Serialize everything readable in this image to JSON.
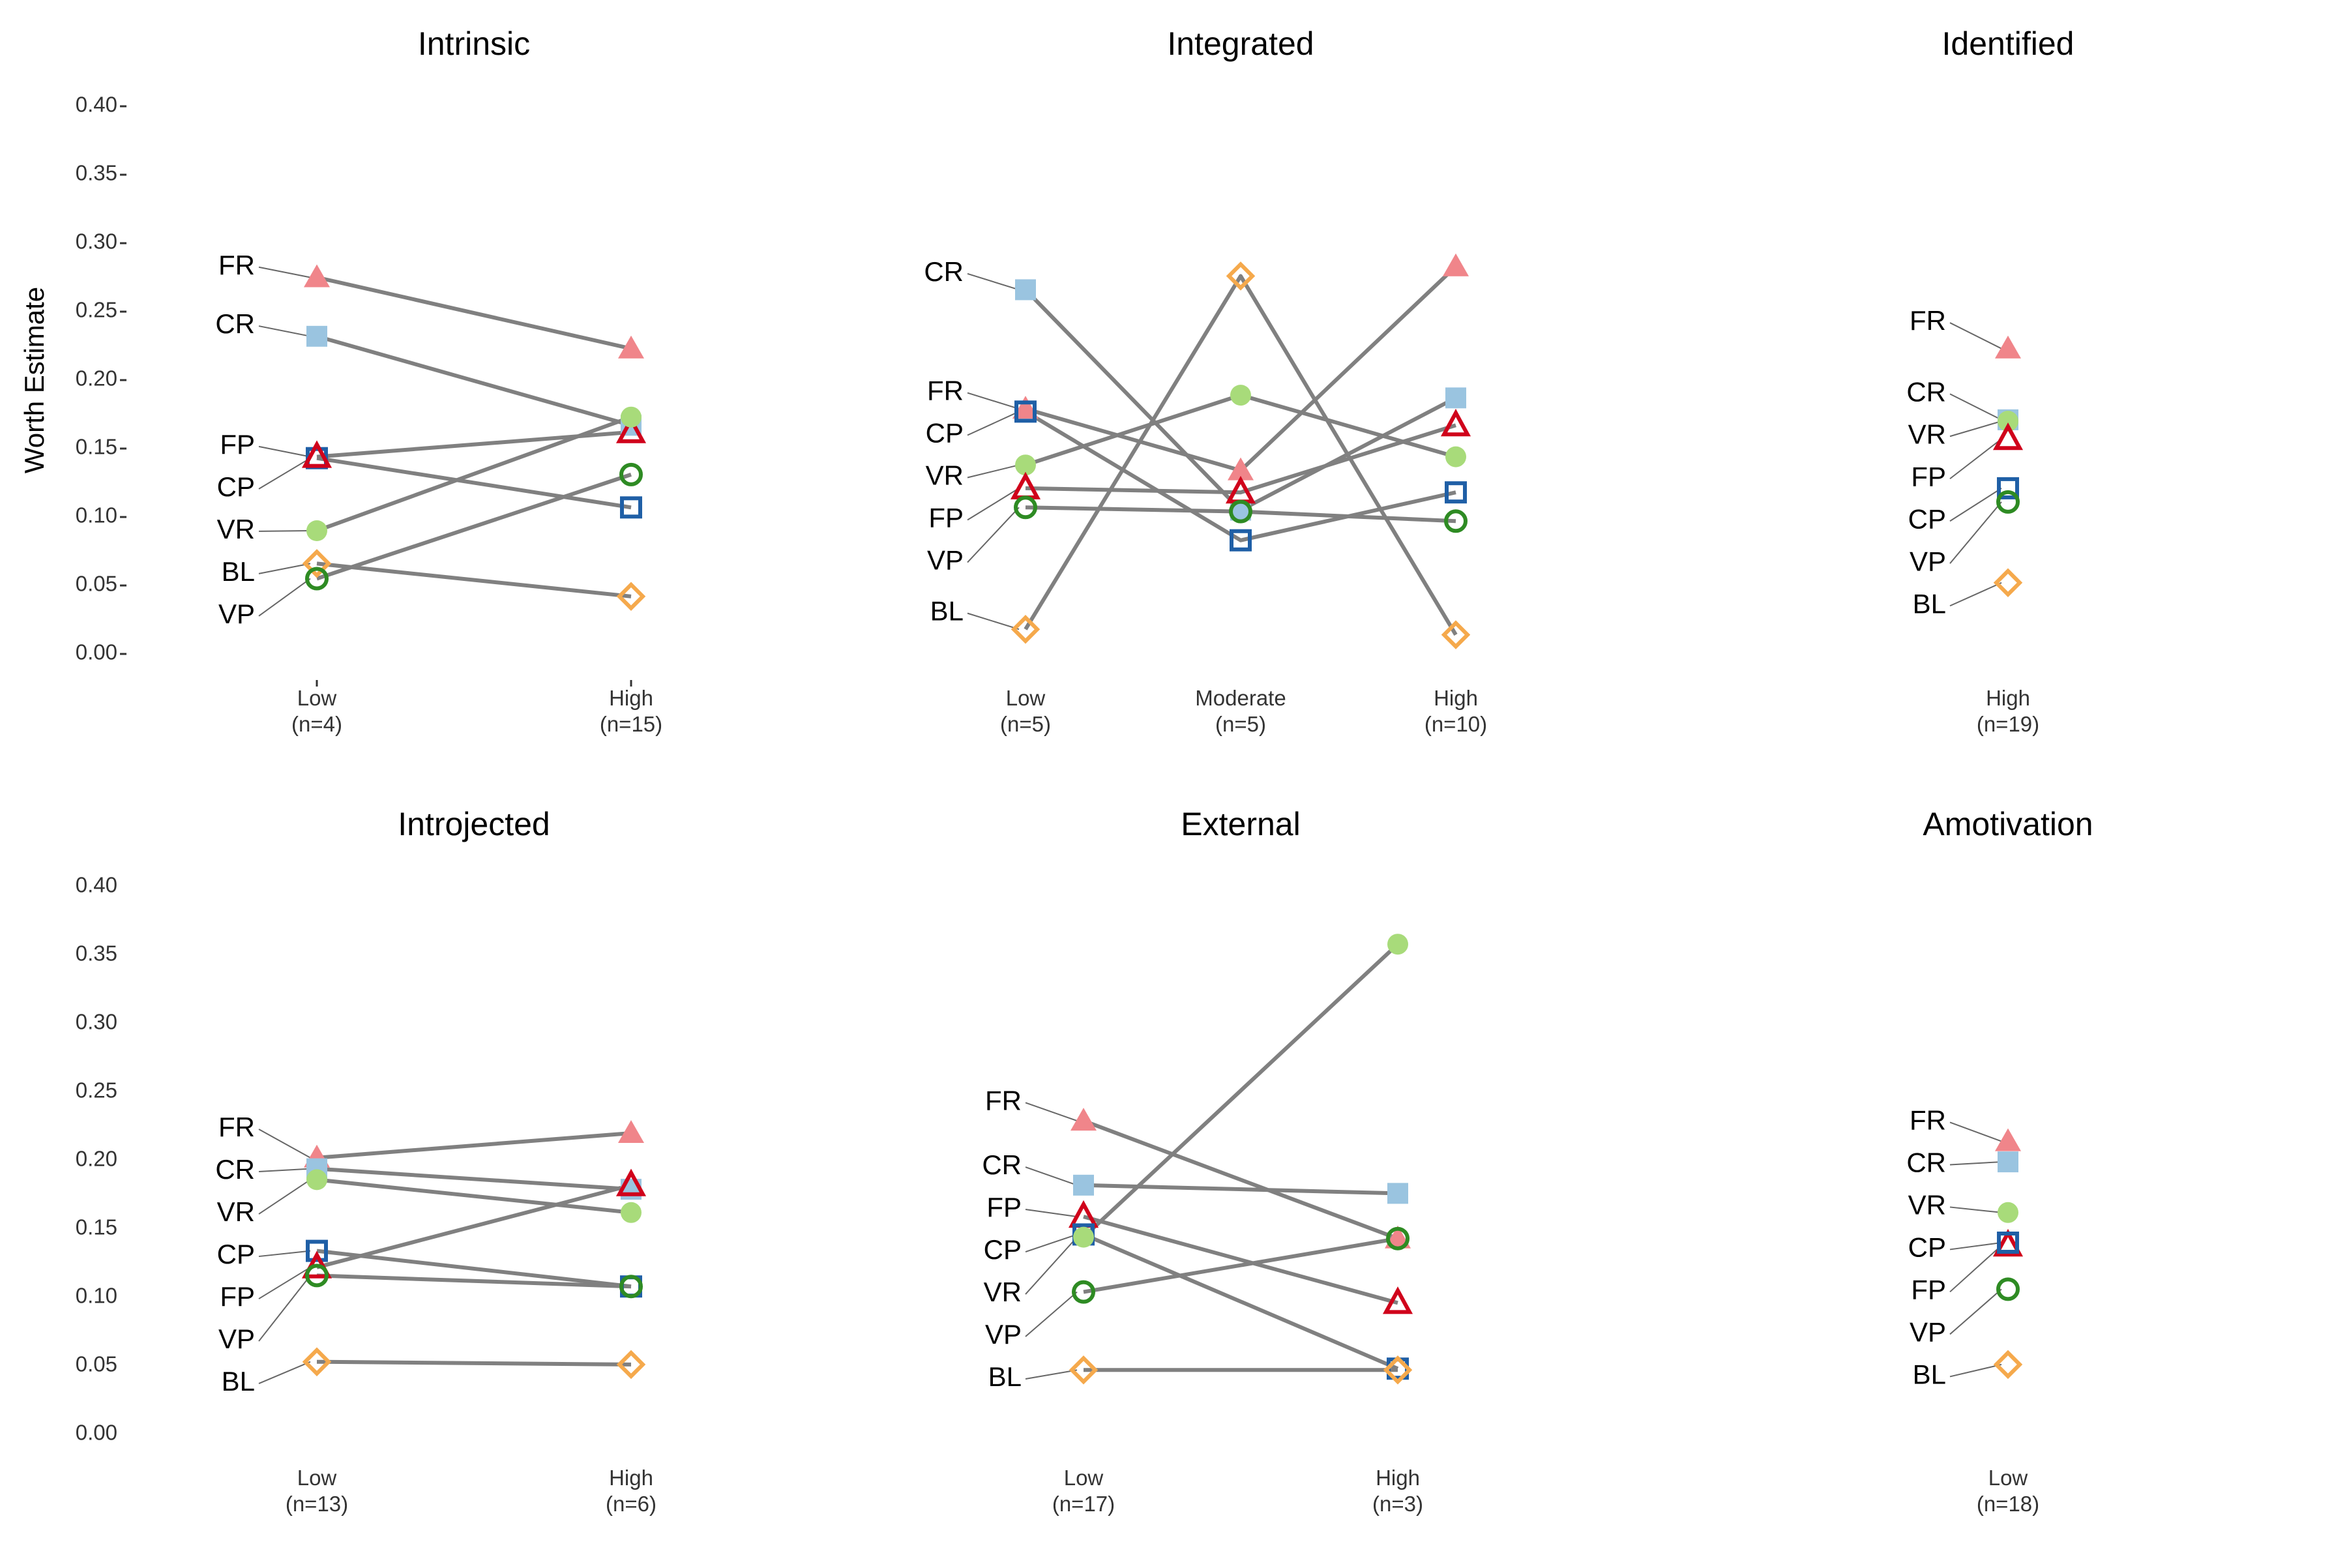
{
  "chart_data": {
    "type": "line",
    "ylabel": "Worth Estimate",
    "ylim": [
      0,
      0.4
    ],
    "yticks": [
      "0.00",
      "0.05",
      "0.10",
      "0.15",
      "0.20",
      "0.25",
      "0.30",
      "0.35",
      "0.40"
    ],
    "grid": false,
    "series_styles": {
      "FR": {
        "color": "#F0858A",
        "marker": "triangle-filled"
      },
      "CR": {
        "color": "#9AC4E0",
        "marker": "square-filled"
      },
      "VR": {
        "color": "#A8DB7A",
        "marker": "circle-filled"
      },
      "CP": {
        "color": "#1F5FA6",
        "marker": "square-open"
      },
      "FP": {
        "color": "#D0021B",
        "marker": "triangle-open"
      },
      "VP": {
        "color": "#2E8B23",
        "marker": "circle-open"
      },
      "BL": {
        "color": "#F5A94C",
        "marker": "diamond-open"
      }
    },
    "line_color": "#808080",
    "panels": [
      {
        "title": "Intrinsic",
        "categories": [
          "Low",
          "High"
        ],
        "counts": [
          "(n=4)",
          "(n=15)"
        ],
        "label_order": [
          "FR",
          "CR",
          "CP",
          "FP",
          "VR",
          "BL",
          "VP"
        ],
        "series": [
          {
            "name": "FR",
            "values": [
              0.275,
              0.223
            ]
          },
          {
            "name": "CR",
            "values": [
              0.232,
              0.167
            ]
          },
          {
            "name": "CP",
            "values": [
              0.143,
              0.107
            ]
          },
          {
            "name": "FP",
            "values": [
              0.144,
              0.162
            ]
          },
          {
            "name": "VR",
            "values": [
              0.09,
              0.173
            ]
          },
          {
            "name": "BL",
            "values": [
              0.066,
              0.042
            ]
          },
          {
            "name": "VP",
            "values": [
              0.055,
              0.131
            ]
          }
        ]
      },
      {
        "title": "Integrated",
        "categories": [
          "Low",
          "Moderate",
          "High"
        ],
        "counts": [
          "(n=5)",
          "(n=5)",
          "(n=10)"
        ],
        "label_order": [
          "CR",
          "FR",
          "CP",
          "VR",
          "FP",
          "VP",
          "BL"
        ],
        "series": [
          {
            "name": "CR",
            "values": [
              0.266,
              0.105,
              0.187
            ]
          },
          {
            "name": "FR",
            "values": [
              0.179,
              0.134,
              0.283
            ]
          },
          {
            "name": "CP",
            "values": [
              0.177,
              0.083,
              0.118
            ]
          },
          {
            "name": "VR",
            "values": [
              0.138,
              0.189,
              0.144
            ]
          },
          {
            "name": "FP",
            "values": [
              0.121,
              0.118,
              0.167
            ]
          },
          {
            "name": "VP",
            "values": [
              0.107,
              0.104,
              0.097
            ]
          },
          {
            "name": "BL",
            "values": [
              0.018,
              0.276,
              0.014
            ]
          }
        ]
      },
      {
        "title": "Identified",
        "categories": [
          "High"
        ],
        "counts": [
          "(n=19)"
        ],
        "label_order": [
          "FR",
          "CR",
          "VR",
          "FP",
          "CP",
          "VP",
          "BL"
        ],
        "series": [
          {
            "name": "FR",
            "values": [
              0.223
            ]
          },
          {
            "name": "CR",
            "values": [
              0.171
            ]
          },
          {
            "name": "VR",
            "values": [
              0.17
            ]
          },
          {
            "name": "FP",
            "values": [
              0.157
            ]
          },
          {
            "name": "CP",
            "values": [
              0.121
            ]
          },
          {
            "name": "VP",
            "values": [
              0.111
            ]
          },
          {
            "name": "BL",
            "values": [
              0.052
            ]
          }
        ]
      },
      {
        "title": "Introjected",
        "categories": [
          "Low",
          "High"
        ],
        "counts": [
          "(n=13)",
          "(n=6)"
        ],
        "label_order": [
          "FR",
          "CR",
          "VR",
          "CP",
          "FP",
          "VP",
          "BL"
        ],
        "series": [
          {
            "name": "FR",
            "values": [
              0.202,
              0.22
            ]
          },
          {
            "name": "CR",
            "values": [
              0.194,
              0.179
            ]
          },
          {
            "name": "VR",
            "values": [
              0.186,
              0.162
            ]
          },
          {
            "name": "CP",
            "values": [
              0.134,
              0.108
            ]
          },
          {
            "name": "FP",
            "values": [
              0.122,
              0.182
            ]
          },
          {
            "name": "VP",
            "values": [
              0.116,
              0.108
            ]
          },
          {
            "name": "BL",
            "values": [
              0.053,
              0.051
            ]
          }
        ]
      },
      {
        "title": "External",
        "categories": [
          "Low",
          "High"
        ],
        "counts": [
          "(n=17)",
          "(n=3)"
        ],
        "label_order": [
          "FR",
          "CR",
          "FP",
          "CP",
          "VR",
          "VP",
          "BL"
        ],
        "series": [
          {
            "name": "FR",
            "values": [
              0.229,
              0.143
            ]
          },
          {
            "name": "CR",
            "values": [
              0.182,
              0.176
            ]
          },
          {
            "name": "FP",
            "values": [
              0.159,
              0.096
            ]
          },
          {
            "name": "CP",
            "values": [
              0.146,
              0.048
            ]
          },
          {
            "name": "VR",
            "values": [
              0.144,
              0.358
            ]
          },
          {
            "name": "VP",
            "values": [
              0.104,
              0.143
            ]
          },
          {
            "name": "BL",
            "values": [
              0.047,
              0.047
            ]
          }
        ]
      },
      {
        "title": "Amotivation",
        "categories": [
          "Low"
        ],
        "counts": [
          "(n=18)"
        ],
        "label_order": [
          "FR",
          "CR",
          "VR",
          "FP",
          "CP",
          "VP",
          "BL"
        ],
        "series": [
          {
            "name": "FR",
            "values": [
              0.214
            ]
          },
          {
            "name": "CR",
            "values": [
              0.199
            ]
          },
          {
            "name": "VR",
            "values": [
              0.162
            ]
          },
          {
            "name": "FP",
            "values": [
              0.138
            ]
          },
          {
            "name": "CP",
            "values": [
              0.14
            ]
          },
          {
            "name": "VP",
            "values": [
              0.106
            ]
          },
          {
            "name": "BL",
            "values": [
              0.051
            ]
          }
        ]
      }
    ]
  }
}
